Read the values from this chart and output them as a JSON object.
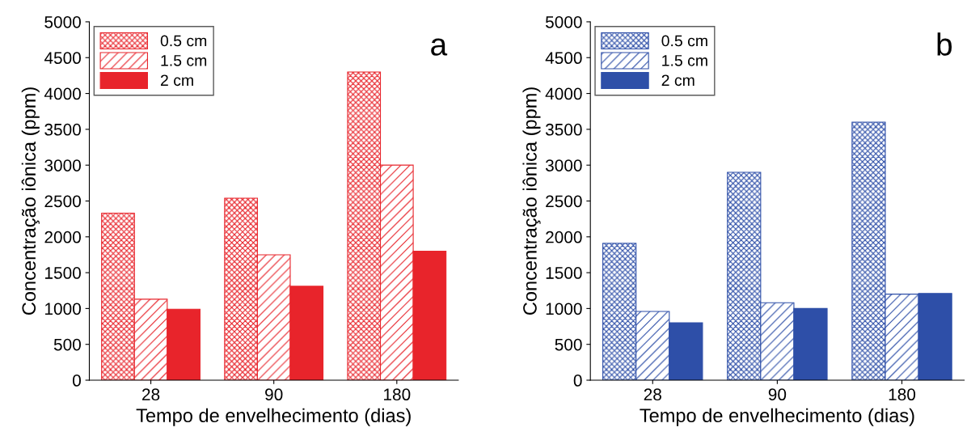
{
  "chart_data": [
    {
      "type": "bar",
      "categories": [
        "28",
        "90",
        "180"
      ],
      "xlabel": "Tempo de envelhecimento (dias)",
      "ylabel": "Concentração iônica (ppm)",
      "ylim": [
        0,
        5000
      ],
      "yticks": [
        0,
        500,
        1000,
        1500,
        2000,
        2500,
        3000,
        3500,
        4000,
        4500,
        5000
      ],
      "legend": "top left",
      "grid": false,
      "annotations": [
        "a"
      ],
      "series": [
        {
          "name": "0.5 cm",
          "color": "#e8242b",
          "values": [
            2330,
            2540,
            4300
          ]
        },
        {
          "name": "1.5 cm",
          "color": "#e8242b",
          "values": [
            1130,
            1750,
            3000
          ]
        },
        {
          "name": "2 cm",
          "color": "#e8242b",
          "values": [
            990,
            1310,
            1800
          ]
        }
      ]
    },
    {
      "type": "bar",
      "categories": [
        "28",
        "90",
        "180"
      ],
      "xlabel": "Tempo de envelhecimento (dias)",
      "ylabel": "Concentração iônica (ppm)",
      "ylim": [
        0,
        5000
      ],
      "yticks": [
        0,
        500,
        1000,
        1500,
        2000,
        2500,
        3000,
        3500,
        4000,
        4500,
        5000
      ],
      "legend": "top left",
      "grid": false,
      "annotations": [
        "b"
      ],
      "series": [
        {
          "name": "0.5 cm",
          "color": "#2e4fa8",
          "values": [
            1910,
            2900,
            3600
          ]
        },
        {
          "name": "1.5 cm",
          "color": "#2e4fa8",
          "values": [
            960,
            1080,
            1200
          ]
        },
        {
          "name": "2 cm",
          "color": "#2e4fa8",
          "values": [
            800,
            1000,
            1210
          ]
        }
      ]
    }
  ]
}
